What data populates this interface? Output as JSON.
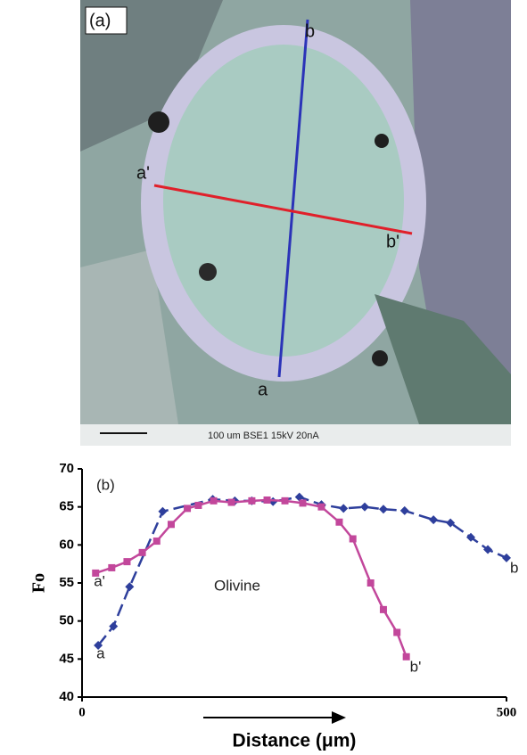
{
  "panel_a": {
    "label": "(a)",
    "line_b_top": "b",
    "line_a_bottom": "a",
    "line_a_left": "a'",
    "line_b_right": "b'",
    "scale_text": "100 um  BSE1  15kV 20nA"
  },
  "chart_data": {
    "type": "line",
    "panel_label": "(b)",
    "annotation": "Olivine",
    "y_label": "Fo",
    "x_label": "Distance (μm)",
    "xlim": [
      0,
      500
    ],
    "xticks": [
      0,
      500
    ],
    "ylim": [
      40,
      70
    ],
    "yticks": [
      40,
      45,
      50,
      55,
      60,
      65,
      70
    ],
    "series": [
      {
        "color": "#2e3f9c",
        "marker": "diamond",
        "dashed": true,
        "start_label": "a",
        "end_label": "b",
        "x": [
          19,
          37,
          56,
          95,
          154,
          180,
          200,
          225,
          256,
          282,
          308,
          333,
          355,
          380,
          414,
          434,
          458,
          478,
          500
        ],
        "values": [
          46.8,
          49.3,
          54.5,
          64.4,
          66,
          65.8,
          65.8,
          65.7,
          66.3,
          65.3,
          64.8,
          65,
          64.7,
          64.5,
          63.3,
          62.9,
          61,
          59.4,
          58.3
        ]
      },
      {
        "color": "#c2479b",
        "marker": "square",
        "dashed": false,
        "start_label": "a'",
        "end_label": "b'",
        "x": [
          16,
          35,
          53,
          71,
          88,
          105,
          124,
          137,
          155,
          176,
          200,
          218,
          239,
          260,
          282,
          303,
          319,
          340,
          355,
          371,
          382
        ],
        "values": [
          56.3,
          57,
          57.8,
          59,
          60.5,
          62.7,
          64.8,
          65.2,
          65.8,
          65.6,
          65.8,
          65.9,
          65.8,
          65.5,
          65,
          63,
          60.8,
          55,
          51.5,
          48.5,
          45.3
        ]
      }
    ]
  }
}
